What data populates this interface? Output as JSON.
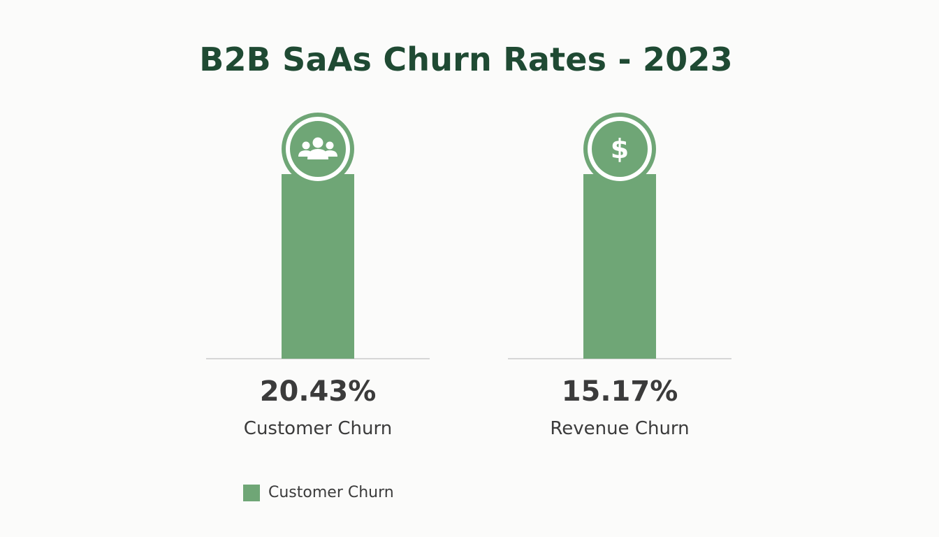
{
  "chart_data": {
    "type": "bar",
    "title": "B2B SaAs Churn Rates - 2023",
    "categories": [
      "Customer Churn",
      "Revenue Churn"
    ],
    "value_labels": [
      "20.43%",
      "15.17%"
    ],
    "series": [
      {
        "name": "Customer Churn",
        "values": [
          20.43,
          15.17
        ]
      }
    ],
    "icons": [
      "users-group-icon",
      "dollar-icon"
    ],
    "legend": [
      "Customer Churn"
    ],
    "legend_position": "bottom-left",
    "colors": {
      "bar": "#6fa676",
      "title": "#1f4a33",
      "text": "#3b3b3b",
      "baseline": "#d6d6d6"
    }
  }
}
